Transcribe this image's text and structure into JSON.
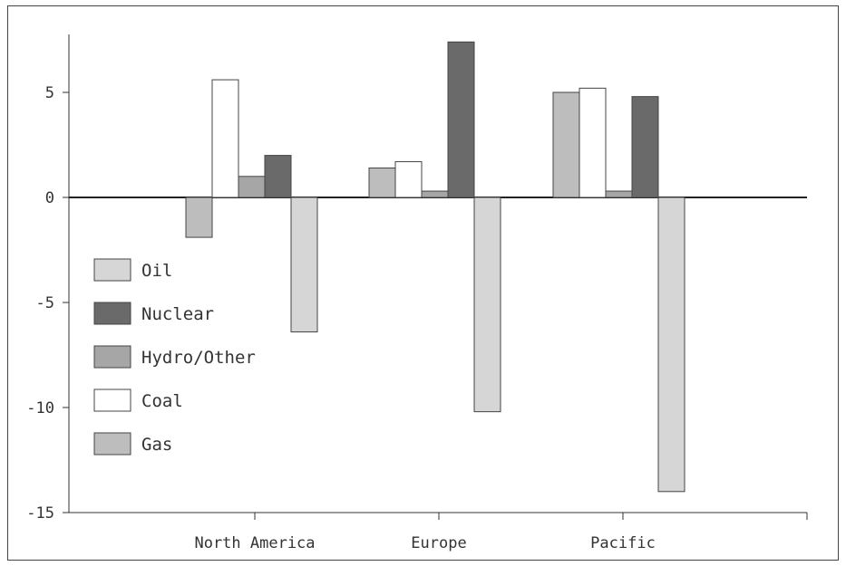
{
  "chart_data": {
    "type": "bar",
    "categories": [
      "North America",
      "Europe",
      "Pacific"
    ],
    "series": [
      {
        "name": "Gas",
        "values": [
          -1.9,
          1.4,
          5.0
        ],
        "color": "#bdbdbd"
      },
      {
        "name": "Coal",
        "values": [
          5.6,
          1.7,
          5.2
        ],
        "color": "#ffffff"
      },
      {
        "name": "Hydro/Other",
        "values": [
          1.0,
          0.3,
          0.3
        ],
        "color": "#a6a6a6"
      },
      {
        "name": "Nuclear",
        "values": [
          2.0,
          7.4,
          4.8
        ],
        "color": "#6a6a6a"
      },
      {
        "name": "Oil",
        "values": [
          -6.4,
          -10.2,
          -14.0
        ],
        "color": "#d6d6d6"
      }
    ],
    "legend": [
      "Oil",
      "Nuclear",
      "Hydro/Other",
      "Coal",
      "Gas"
    ],
    "yticks": [
      5,
      0,
      -5,
      -10,
      -15
    ],
    "ylim": [
      -15,
      8
    ],
    "title": "",
    "xlabel": "",
    "ylabel": "",
    "grid": false,
    "legend_position": "left"
  }
}
